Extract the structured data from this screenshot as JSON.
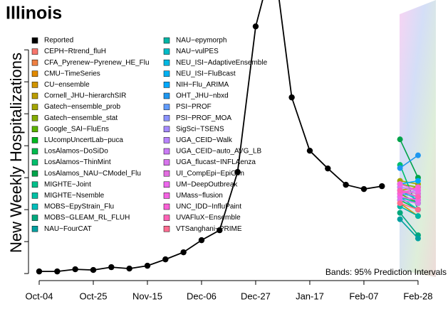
{
  "chart_data": {
    "type": "line",
    "title": "Illinois",
    "y_label": "New Weekly Hospitalizations",
    "annotation": "Bands: 95% Prediction Intervals",
    "categories": [
      "Oct-04",
      null,
      null,
      "Oct-25",
      null,
      null,
      "Nov-15",
      null,
      null,
      "Dec-06",
      null,
      null,
      "Dec-27",
      null,
      null,
      "Jan-17",
      null,
      null,
      "Feb-07",
      null,
      null,
      "Feb-28"
    ],
    "ylim": [
      -110,
      4280
    ],
    "yticks": [
      0,
      500,
      1000,
      1500,
      2000,
      2500,
      3000,
      3500
    ],
    "series": [
      {
        "name": "Reported",
        "color": "#000000",
        "values": [
          33,
          33,
          67,
          56,
          100,
          78,
          122,
          222,
          333,
          522,
          678,
          1589,
          3867,
          4944,
          2756,
          1922,
          1644,
          1389,
          1322,
          1367,
          null,
          null
        ]
      },
      {
        "name": "CEPH−Rtrend_fluH",
        "color": "#f8766d",
        "values": [
          null,
          null,
          null,
          null,
          null,
          null,
          null,
          null,
          null,
          null,
          null,
          null,
          null,
          null,
          null,
          null,
          null,
          null,
          null,
          null,
          1250,
          1200
        ]
      },
      {
        "name": "CFA_Pyrenew−Pyrenew_HE_Flu",
        "color": "#ee8043",
        "values": [
          null,
          null,
          null,
          null,
          null,
          null,
          null,
          null,
          null,
          null,
          null,
          null,
          null,
          null,
          null,
          null,
          null,
          null,
          null,
          null,
          1200,
          1150
        ]
      },
      {
        "name": "CMU−TimeSeries",
        "color": "#e18a00",
        "values": [
          null,
          null,
          null,
          null,
          null,
          null,
          null,
          null,
          null,
          null,
          null,
          null,
          null,
          null,
          null,
          null,
          null,
          null,
          null,
          null,
          1350,
          1300
        ]
      },
      {
        "name": "CU−ensemble",
        "color": "#d09400",
        "values": [
          null,
          null,
          null,
          null,
          null,
          null,
          null,
          null,
          null,
          null,
          null,
          null,
          null,
          null,
          null,
          null,
          null,
          null,
          null,
          null,
          1100,
          900
        ]
      },
      {
        "name": "Cornell_JHU−hierarchSIR",
        "color": "#bb9d00",
        "values": [
          null,
          null,
          null,
          null,
          null,
          null,
          null,
          null,
          null,
          null,
          null,
          null,
          null,
          null,
          null,
          null,
          null,
          null,
          null,
          null,
          1300,
          1350
        ]
      },
      {
        "name": "Gatech−ensemble_prob",
        "color": "#a3a500",
        "values": [
          null,
          null,
          null,
          null,
          null,
          null,
          null,
          null,
          null,
          null,
          null,
          null,
          null,
          null,
          null,
          null,
          null,
          null,
          null,
          null,
          1450,
          1400
        ]
      },
      {
        "name": "Gatech−ensemble_stat",
        "color": "#85ad00",
        "values": [
          null,
          null,
          null,
          null,
          null,
          null,
          null,
          null,
          null,
          null,
          null,
          null,
          null,
          null,
          null,
          null,
          null,
          null,
          null,
          null,
          1400,
          1350
        ]
      },
      {
        "name": "Google_SAI−FluEns",
        "color": "#5bb300",
        "values": [
          null,
          null,
          null,
          null,
          null,
          null,
          null,
          null,
          null,
          null,
          null,
          null,
          null,
          null,
          null,
          null,
          null,
          null,
          null,
          null,
          1250,
          1100
        ]
      },
      {
        "name": "LUcompUncertLab−puca",
        "color": "#00b81f",
        "values": [
          null,
          null,
          null,
          null,
          null,
          null,
          null,
          null,
          null,
          null,
          null,
          null,
          null,
          null,
          null,
          null,
          null,
          null,
          null,
          null,
          1300,
          1250
        ]
      },
      {
        "name": "LosAlamos−DoSiDo",
        "color": "#00bb4e",
        "values": [
          null,
          null,
          null,
          null,
          null,
          null,
          null,
          null,
          null,
          null,
          null,
          null,
          null,
          null,
          null,
          null,
          null,
          null,
          null,
          null,
          1150,
          1000
        ]
      },
      {
        "name": "LosAlamos−ThinMint",
        "color": "#00be6c",
        "values": [
          null,
          null,
          null,
          null,
          null,
          null,
          null,
          null,
          null,
          null,
          null,
          null,
          null,
          null,
          null,
          null,
          null,
          null,
          null,
          null,
          1700,
          1000
        ]
      },
      {
        "name": "LosAlamos_NAU−CModel_Flu",
        "color": "#00a34a",
        "values": [
          null,
          null,
          null,
          null,
          null,
          null,
          null,
          null,
          null,
          null,
          null,
          null,
          null,
          null,
          null,
          null,
          null,
          null,
          null,
          null,
          2100,
          1500
        ]
      },
      {
        "name": "MIGHTE−Joint",
        "color": "#00c08b",
        "values": [
          null,
          null,
          null,
          null,
          null,
          null,
          null,
          null,
          null,
          null,
          null,
          null,
          null,
          null,
          null,
          null,
          null,
          null,
          null,
          null,
          1250,
          1200
        ]
      },
      {
        "name": "MIGHTE−Nsemble",
        "color": "#00c1a5",
        "values": [
          null,
          null,
          null,
          null,
          null,
          null,
          null,
          null,
          null,
          null,
          null,
          null,
          null,
          null,
          null,
          null,
          null,
          null,
          null,
          null,
          1200,
          1100
        ]
      },
      {
        "name": "MOBS−EpyStrain_Flu",
        "color": "#00bfbc",
        "values": [
          null,
          null,
          null,
          null,
          null,
          null,
          null,
          null,
          null,
          null,
          null,
          null,
          null,
          null,
          null,
          null,
          null,
          null,
          null,
          null,
          1300,
          1150
        ]
      },
      {
        "name": "MOBS−GLEAM_RL_FLUH",
        "color": "#00a87d",
        "values": [
          null,
          null,
          null,
          null,
          null,
          null,
          null,
          null,
          null,
          null,
          null,
          null,
          null,
          null,
          null,
          null,
          null,
          null,
          null,
          null,
          950,
          600
        ]
      },
      {
        "name": "NAU−FourCAT",
        "color": "#00a0a0",
        "values": [
          null,
          null,
          null,
          null,
          null,
          null,
          null,
          null,
          null,
          null,
          null,
          null,
          null,
          null,
          null,
          null,
          null,
          null,
          null,
          null,
          850,
          550
        ]
      },
      {
        "name": "NAU−epymorph",
        "color": "#00b5a6",
        "values": [
          null,
          null,
          null,
          null,
          null,
          null,
          null,
          null,
          null,
          null,
          null,
          null,
          null,
          null,
          null,
          null,
          null,
          null,
          null,
          null,
          1050,
          900
        ]
      },
      {
        "name": "NAU−vulPES",
        "color": "#00bcc8",
        "values": [
          null,
          null,
          null,
          null,
          null,
          null,
          null,
          null,
          null,
          null,
          null,
          null,
          null,
          null,
          null,
          null,
          null,
          null,
          null,
          null,
          1200,
          1000
        ]
      },
      {
        "name": "NEU_ISI−AdaptiveEnsemble",
        "color": "#00b9e3",
        "values": [
          null,
          null,
          null,
          null,
          null,
          null,
          null,
          null,
          null,
          null,
          null,
          null,
          null,
          null,
          null,
          null,
          null,
          null,
          null,
          null,
          1300,
          1200
        ]
      },
      {
        "name": "NEU_ISI−FluBcast",
        "color": "#00b2f3",
        "values": [
          null,
          null,
          null,
          null,
          null,
          null,
          null,
          null,
          null,
          null,
          null,
          null,
          null,
          null,
          null,
          null,
          null,
          null,
          null,
          null,
          1350,
          1300
        ]
      },
      {
        "name": "NIH−Flu_ARIMA",
        "color": "#00a9ff",
        "values": [
          null,
          null,
          null,
          null,
          null,
          null,
          null,
          null,
          null,
          null,
          null,
          null,
          null,
          null,
          null,
          null,
          null,
          null,
          null,
          null,
          1400,
          1450
        ]
      },
      {
        "name": "OHT_JHU−nbxd",
        "color": "#1f97f0",
        "values": [
          null,
          null,
          null,
          null,
          null,
          null,
          null,
          null,
          null,
          null,
          null,
          null,
          null,
          null,
          null,
          null,
          null,
          null,
          null,
          null,
          1650,
          1850
        ]
      },
      {
        "name": "PSI−PROF",
        "color": "#619cff",
        "values": [
          null,
          null,
          null,
          null,
          null,
          null,
          null,
          null,
          null,
          null,
          null,
          null,
          null,
          null,
          null,
          null,
          null,
          null,
          null,
          null,
          1250,
          1200
        ]
      },
      {
        "name": "PSI−PROF_MOA",
        "color": "#8b93ff",
        "values": [
          null,
          null,
          null,
          null,
          null,
          null,
          null,
          null,
          null,
          null,
          null,
          null,
          null,
          null,
          null,
          null,
          null,
          null,
          null,
          null,
          1300,
          1250
        ]
      },
      {
        "name": "SigSci−TSENS",
        "color": "#a58aff",
        "values": [
          null,
          null,
          null,
          null,
          null,
          null,
          null,
          null,
          null,
          null,
          null,
          null,
          null,
          null,
          null,
          null,
          null,
          null,
          null,
          null,
          1200,
          1150
        ]
      },
      {
        "name": "UGA_CEID−Walk",
        "color": "#b983ff",
        "values": [
          null,
          null,
          null,
          null,
          null,
          null,
          null,
          null,
          null,
          null,
          null,
          null,
          null,
          null,
          null,
          null,
          null,
          null,
          null,
          null,
          1250,
          1300
        ]
      },
      {
        "name": "UGA_CEID−auto_AVG_LB",
        "color": "#cb7bf6",
        "values": [
          null,
          null,
          null,
          null,
          null,
          null,
          null,
          null,
          null,
          null,
          null,
          null,
          null,
          null,
          null,
          null,
          null,
          null,
          null,
          null,
          1350,
          1300
        ]
      },
      {
        "name": "UGA_flucast−INFLAenza",
        "color": "#d774ec",
        "values": [
          null,
          null,
          null,
          null,
          null,
          null,
          null,
          null,
          null,
          null,
          null,
          null,
          null,
          null,
          null,
          null,
          null,
          null,
          null,
          null,
          1150,
          1100
        ]
      },
      {
        "name": "UI_CompEpi−EpiGen",
        "color": "#e36ee0",
        "values": [
          null,
          null,
          null,
          null,
          null,
          null,
          null,
          null,
          null,
          null,
          null,
          null,
          null,
          null,
          null,
          null,
          null,
          null,
          null,
          null,
          1300,
          1250
        ]
      },
      {
        "name": "UM−DeepOutbreak",
        "color": "#ed68ed",
        "values": [
          null,
          null,
          null,
          null,
          null,
          null,
          null,
          null,
          null,
          null,
          null,
          null,
          null,
          null,
          null,
          null,
          null,
          null,
          null,
          null,
          1200,
          1150
        ]
      },
      {
        "name": "UMass−flusion",
        "color": "#f564e3",
        "values": [
          null,
          null,
          null,
          null,
          null,
          null,
          null,
          null,
          null,
          null,
          null,
          null,
          null,
          null,
          null,
          null,
          null,
          null,
          null,
          null,
          1400,
          1300
        ]
      },
      {
        "name": "UNC_IDD−InfluPaint",
        "color": "#fb61d7",
        "values": [
          null,
          null,
          null,
          null,
          null,
          null,
          null,
          null,
          null,
          null,
          null,
          null,
          null,
          null,
          null,
          null,
          null,
          null,
          null,
          null,
          1250,
          1350
        ]
      },
      {
        "name": "UVAFluX−Ensemble",
        "color": "#ff63b6",
        "values": [
          null,
          null,
          null,
          null,
          null,
          null,
          null,
          null,
          null,
          null,
          null,
          null,
          null,
          null,
          null,
          null,
          null,
          null,
          null,
          null,
          1300,
          1200
        ]
      },
      {
        "name": "VTSanghani−PRIME",
        "color": "#ff6c91",
        "values": [
          null,
          null,
          null,
          null,
          null,
          null,
          null,
          null,
          null,
          null,
          null,
          null,
          null,
          null,
          null,
          null,
          null,
          null,
          null,
          null,
          1100,
          1000
        ]
      }
    ]
  }
}
